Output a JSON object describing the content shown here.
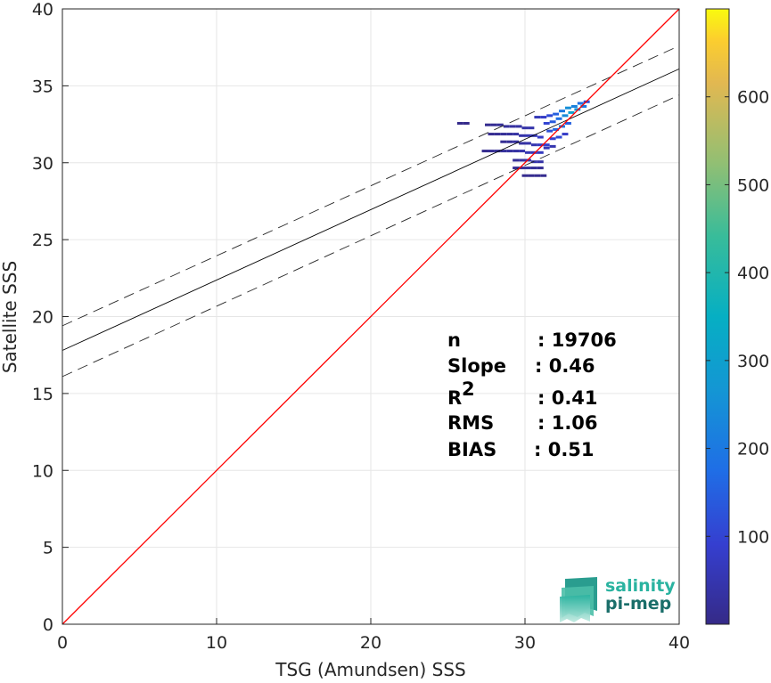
{
  "chart_data": {
    "type": "scatter",
    "xlabel": "TSG (Amundsen) SSS",
    "ylabel": "Satellite SSS",
    "xlim": [
      0,
      40
    ],
    "ylim": [
      0,
      40
    ],
    "xticks": [
      "0",
      "10",
      "20",
      "30",
      "40"
    ],
    "yticks": [
      "0",
      "5",
      "10",
      "15",
      "20",
      "25",
      "30",
      "35",
      "40"
    ],
    "grid": true,
    "identity_line": {
      "x": [
        0,
        40
      ],
      "y": [
        0,
        40
      ],
      "color": "#ff0000"
    },
    "fit_line": {
      "x": [
        0,
        40
      ],
      "y": [
        17.8,
        36.1
      ],
      "color": "#000000"
    },
    "fit_band_upper": {
      "x": [
        0,
        40
      ],
      "y": [
        19.4,
        37.6
      ]
    },
    "fit_band_lower": {
      "x": [
        0,
        40
      ],
      "y": [
        16.1,
        34.4
      ]
    },
    "density_bins": [
      {
        "x": 25.8,
        "y": 32.4,
        "v": 5
      },
      {
        "x": 26.2,
        "y": 32.4,
        "v": 5
      },
      {
        "x": 27.6,
        "y": 32.3,
        "v": 10
      },
      {
        "x": 28.0,
        "y": 32.3,
        "v": 15
      },
      {
        "x": 28.4,
        "y": 32.3,
        "v": 20
      },
      {
        "x": 28.8,
        "y": 32.2,
        "v": 25
      },
      {
        "x": 29.2,
        "y": 32.2,
        "v": 30
      },
      {
        "x": 29.6,
        "y": 32.2,
        "v": 35
      },
      {
        "x": 30.0,
        "y": 32.1,
        "v": 40
      },
      {
        "x": 30.4,
        "y": 32.1,
        "v": 45
      },
      {
        "x": 27.8,
        "y": 31.7,
        "v": 10
      },
      {
        "x": 28.2,
        "y": 31.7,
        "v": 15
      },
      {
        "x": 28.6,
        "y": 31.7,
        "v": 20
      },
      {
        "x": 29.0,
        "y": 31.7,
        "v": 25
      },
      {
        "x": 29.4,
        "y": 31.7,
        "v": 35
      },
      {
        "x": 29.8,
        "y": 31.6,
        "v": 40
      },
      {
        "x": 30.2,
        "y": 31.6,
        "v": 50
      },
      {
        "x": 30.6,
        "y": 31.6,
        "v": 60
      },
      {
        "x": 31.0,
        "y": 31.5,
        "v": 80
      },
      {
        "x": 28.6,
        "y": 31.2,
        "v": 15
      },
      {
        "x": 29.0,
        "y": 31.2,
        "v": 20
      },
      {
        "x": 29.4,
        "y": 31.2,
        "v": 25
      },
      {
        "x": 29.8,
        "y": 31.1,
        "v": 30
      },
      {
        "x": 30.2,
        "y": 31.1,
        "v": 40
      },
      {
        "x": 30.6,
        "y": 31.0,
        "v": 50
      },
      {
        "x": 31.0,
        "y": 31.0,
        "v": 70
      },
      {
        "x": 31.4,
        "y": 31.0,
        "v": 90
      },
      {
        "x": 27.4,
        "y": 30.6,
        "v": 10
      },
      {
        "x": 27.8,
        "y": 30.6,
        "v": 15
      },
      {
        "x": 28.2,
        "y": 30.6,
        "v": 20
      },
      {
        "x": 28.6,
        "y": 30.6,
        "v": 25
      },
      {
        "x": 29.0,
        "y": 30.6,
        "v": 30
      },
      {
        "x": 29.4,
        "y": 30.6,
        "v": 35
      },
      {
        "x": 29.8,
        "y": 30.6,
        "v": 45
      },
      {
        "x": 30.2,
        "y": 30.5,
        "v": 55
      },
      {
        "x": 30.6,
        "y": 30.5,
        "v": 60
      },
      {
        "x": 31.0,
        "y": 30.5,
        "v": 70
      },
      {
        "x": 29.4,
        "y": 30.0,
        "v": 20
      },
      {
        "x": 29.8,
        "y": 30.0,
        "v": 30
      },
      {
        "x": 30.2,
        "y": 30.0,
        "v": 40
      },
      {
        "x": 30.6,
        "y": 29.9,
        "v": 45
      },
      {
        "x": 31.0,
        "y": 29.9,
        "v": 40
      },
      {
        "x": 29.4,
        "y": 29.5,
        "v": 15
      },
      {
        "x": 29.8,
        "y": 29.5,
        "v": 20
      },
      {
        "x": 30.2,
        "y": 29.5,
        "v": 25
      },
      {
        "x": 30.6,
        "y": 29.5,
        "v": 20
      },
      {
        "x": 31.0,
        "y": 29.5,
        "v": 15
      },
      {
        "x": 30.0,
        "y": 29.0,
        "v": 10
      },
      {
        "x": 30.4,
        "y": 29.0,
        "v": 10
      },
      {
        "x": 30.8,
        "y": 29.0,
        "v": 10
      },
      {
        "x": 31.2,
        "y": 29.0,
        "v": 10
      },
      {
        "x": 30.8,
        "y": 32.8,
        "v": 60
      },
      {
        "x": 31.2,
        "y": 32.8,
        "v": 80
      },
      {
        "x": 31.6,
        "y": 32.9,
        "v": 110
      },
      {
        "x": 32.0,
        "y": 33.0,
        "v": 150
      },
      {
        "x": 32.4,
        "y": 33.2,
        "v": 200
      },
      {
        "x": 32.8,
        "y": 33.4,
        "v": 250
      },
      {
        "x": 33.2,
        "y": 33.5,
        "v": 220
      },
      {
        "x": 33.6,
        "y": 33.7,
        "v": 180
      },
      {
        "x": 34.0,
        "y": 33.8,
        "v": 120
      },
      {
        "x": 31.4,
        "y": 32.4,
        "v": 100
      },
      {
        "x": 31.8,
        "y": 32.5,
        "v": 140
      },
      {
        "x": 32.2,
        "y": 32.7,
        "v": 180
      },
      {
        "x": 32.6,
        "y": 32.9,
        "v": 240
      },
      {
        "x": 33.0,
        "y": 33.1,
        "v": 300
      },
      {
        "x": 33.4,
        "y": 33.3,
        "v": 260
      },
      {
        "x": 33.8,
        "y": 33.5,
        "v": 200
      },
      {
        "x": 31.6,
        "y": 31.9,
        "v": 120
      },
      {
        "x": 32.0,
        "y": 32.0,
        "v": 160
      },
      {
        "x": 32.4,
        "y": 32.2,
        "v": 200
      },
      {
        "x": 32.8,
        "y": 32.4,
        "v": 150
      },
      {
        "x": 31.8,
        "y": 31.4,
        "v": 90
      },
      {
        "x": 32.2,
        "y": 31.5,
        "v": 110
      },
      {
        "x": 32.6,
        "y": 31.7,
        "v": 80
      },
      {
        "x": 31.4,
        "y": 30.8,
        "v": 60
      },
      {
        "x": 31.8,
        "y": 30.9,
        "v": 50
      }
    ],
    "colorbar": {
      "min": 0,
      "max": 700,
      "ticks": [
        "100",
        "200",
        "300",
        "400",
        "500",
        "600"
      ],
      "colormap": "parula"
    },
    "annotation": {
      "rows": [
        {
          "label": "n",
          "value": ": 19706"
        },
        {
          "label": "Slope",
          "value": ": 0.46"
        },
        {
          "label": "R",
          "sup": "2",
          "value": ": 0.41"
        },
        {
          "label": "RMS",
          "value": ": 1.06"
        },
        {
          "label": "BIAS",
          "value": ": 0.51"
        }
      ]
    }
  },
  "logo": {
    "line1": "salinity",
    "line2": "pi-mep",
    "color1": "#2ab3a0",
    "color2": "#1a6e6a"
  }
}
